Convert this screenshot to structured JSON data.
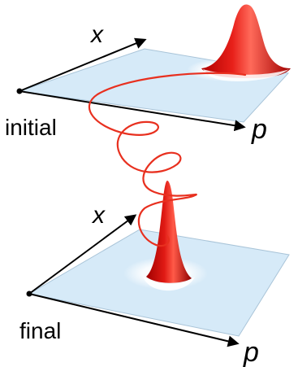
{
  "labels": {
    "top_x": "x",
    "top_p": "p",
    "top_state": "initial",
    "bottom_x": "x",
    "bottom_p": "p",
    "bottom_state": "final"
  },
  "colors": {
    "plane_fill": "#d6eaf8",
    "plane_edge": "#a9c4d8",
    "axis": "#000000",
    "peak": "#d40f0f",
    "trajectory": "#e8301f"
  }
}
